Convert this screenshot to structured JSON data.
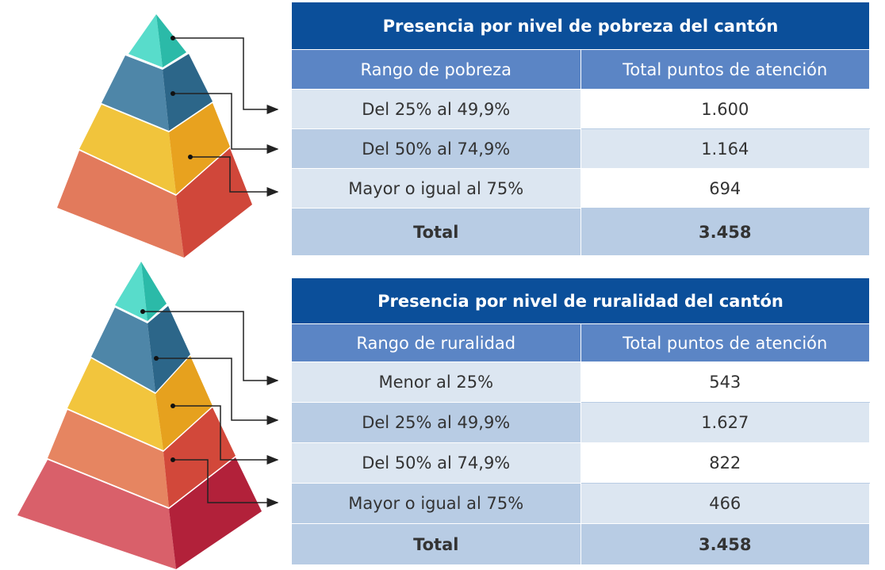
{
  "tables": [
    {
      "title": "Presencia por nivel de pobreza del cantón",
      "header": [
        "Rango de pobreza",
        "Total puntos de atención"
      ],
      "rows": [
        [
          "Del 25% al 49,9%",
          "1.600"
        ],
        [
          "Del 50% al 74,9%",
          "1.164"
        ],
        [
          "Mayor o igual al 75%",
          "694"
        ]
      ],
      "total": [
        "Total",
        "3.458"
      ]
    },
    {
      "title": "Presencia por nivel de ruralidad del cantón",
      "header": [
        "Rango de ruralidad",
        "Total puntos de atención"
      ],
      "rows": [
        [
          "Menor al 25%",
          "543"
        ],
        [
          "Del 25% al 49,9%",
          "1.627"
        ],
        [
          "Del 50% al 74,9%",
          "822"
        ],
        [
          "Mayor o igual al 75%",
          "466"
        ]
      ],
      "total": [
        "Total",
        "3.458"
      ]
    }
  ]
}
